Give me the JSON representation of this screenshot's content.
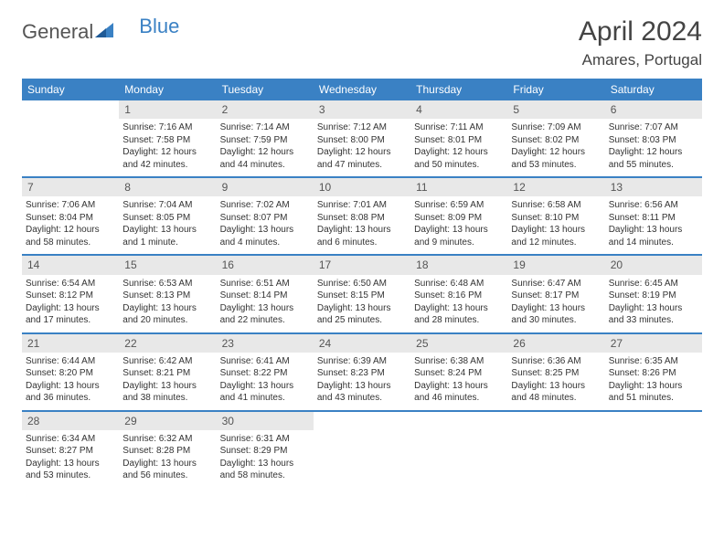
{
  "logo": {
    "part1": "General",
    "part2": "Blue"
  },
  "title": "April 2024",
  "location": "Amares, Portugal",
  "colors": {
    "brand": "#3a81c4",
    "day_bar_bg": "#e8e8e8",
    "text": "#333333",
    "header_text": "#ffffff"
  },
  "dayHeaders": [
    "Sunday",
    "Monday",
    "Tuesday",
    "Wednesday",
    "Thursday",
    "Friday",
    "Saturday"
  ],
  "weeks": [
    [
      {
        "num": "",
        "sunrise": "",
        "sunset": "",
        "daylight": ""
      },
      {
        "num": "1",
        "sunrise": "Sunrise: 7:16 AM",
        "sunset": "Sunset: 7:58 PM",
        "daylight": "Daylight: 12 hours and 42 minutes."
      },
      {
        "num": "2",
        "sunrise": "Sunrise: 7:14 AM",
        "sunset": "Sunset: 7:59 PM",
        "daylight": "Daylight: 12 hours and 44 minutes."
      },
      {
        "num": "3",
        "sunrise": "Sunrise: 7:12 AM",
        "sunset": "Sunset: 8:00 PM",
        "daylight": "Daylight: 12 hours and 47 minutes."
      },
      {
        "num": "4",
        "sunrise": "Sunrise: 7:11 AM",
        "sunset": "Sunset: 8:01 PM",
        "daylight": "Daylight: 12 hours and 50 minutes."
      },
      {
        "num": "5",
        "sunrise": "Sunrise: 7:09 AM",
        "sunset": "Sunset: 8:02 PM",
        "daylight": "Daylight: 12 hours and 53 minutes."
      },
      {
        "num": "6",
        "sunrise": "Sunrise: 7:07 AM",
        "sunset": "Sunset: 8:03 PM",
        "daylight": "Daylight: 12 hours and 55 minutes."
      }
    ],
    [
      {
        "num": "7",
        "sunrise": "Sunrise: 7:06 AM",
        "sunset": "Sunset: 8:04 PM",
        "daylight": "Daylight: 12 hours and 58 minutes."
      },
      {
        "num": "8",
        "sunrise": "Sunrise: 7:04 AM",
        "sunset": "Sunset: 8:05 PM",
        "daylight": "Daylight: 13 hours and 1 minute."
      },
      {
        "num": "9",
        "sunrise": "Sunrise: 7:02 AM",
        "sunset": "Sunset: 8:07 PM",
        "daylight": "Daylight: 13 hours and 4 minutes."
      },
      {
        "num": "10",
        "sunrise": "Sunrise: 7:01 AM",
        "sunset": "Sunset: 8:08 PM",
        "daylight": "Daylight: 13 hours and 6 minutes."
      },
      {
        "num": "11",
        "sunrise": "Sunrise: 6:59 AM",
        "sunset": "Sunset: 8:09 PM",
        "daylight": "Daylight: 13 hours and 9 minutes."
      },
      {
        "num": "12",
        "sunrise": "Sunrise: 6:58 AM",
        "sunset": "Sunset: 8:10 PM",
        "daylight": "Daylight: 13 hours and 12 minutes."
      },
      {
        "num": "13",
        "sunrise": "Sunrise: 6:56 AM",
        "sunset": "Sunset: 8:11 PM",
        "daylight": "Daylight: 13 hours and 14 minutes."
      }
    ],
    [
      {
        "num": "14",
        "sunrise": "Sunrise: 6:54 AM",
        "sunset": "Sunset: 8:12 PM",
        "daylight": "Daylight: 13 hours and 17 minutes."
      },
      {
        "num": "15",
        "sunrise": "Sunrise: 6:53 AM",
        "sunset": "Sunset: 8:13 PM",
        "daylight": "Daylight: 13 hours and 20 minutes."
      },
      {
        "num": "16",
        "sunrise": "Sunrise: 6:51 AM",
        "sunset": "Sunset: 8:14 PM",
        "daylight": "Daylight: 13 hours and 22 minutes."
      },
      {
        "num": "17",
        "sunrise": "Sunrise: 6:50 AM",
        "sunset": "Sunset: 8:15 PM",
        "daylight": "Daylight: 13 hours and 25 minutes."
      },
      {
        "num": "18",
        "sunrise": "Sunrise: 6:48 AM",
        "sunset": "Sunset: 8:16 PM",
        "daylight": "Daylight: 13 hours and 28 minutes."
      },
      {
        "num": "19",
        "sunrise": "Sunrise: 6:47 AM",
        "sunset": "Sunset: 8:17 PM",
        "daylight": "Daylight: 13 hours and 30 minutes."
      },
      {
        "num": "20",
        "sunrise": "Sunrise: 6:45 AM",
        "sunset": "Sunset: 8:19 PM",
        "daylight": "Daylight: 13 hours and 33 minutes."
      }
    ],
    [
      {
        "num": "21",
        "sunrise": "Sunrise: 6:44 AM",
        "sunset": "Sunset: 8:20 PM",
        "daylight": "Daylight: 13 hours and 36 minutes."
      },
      {
        "num": "22",
        "sunrise": "Sunrise: 6:42 AM",
        "sunset": "Sunset: 8:21 PM",
        "daylight": "Daylight: 13 hours and 38 minutes."
      },
      {
        "num": "23",
        "sunrise": "Sunrise: 6:41 AM",
        "sunset": "Sunset: 8:22 PM",
        "daylight": "Daylight: 13 hours and 41 minutes."
      },
      {
        "num": "24",
        "sunrise": "Sunrise: 6:39 AM",
        "sunset": "Sunset: 8:23 PM",
        "daylight": "Daylight: 13 hours and 43 minutes."
      },
      {
        "num": "25",
        "sunrise": "Sunrise: 6:38 AM",
        "sunset": "Sunset: 8:24 PM",
        "daylight": "Daylight: 13 hours and 46 minutes."
      },
      {
        "num": "26",
        "sunrise": "Sunrise: 6:36 AM",
        "sunset": "Sunset: 8:25 PM",
        "daylight": "Daylight: 13 hours and 48 minutes."
      },
      {
        "num": "27",
        "sunrise": "Sunrise: 6:35 AM",
        "sunset": "Sunset: 8:26 PM",
        "daylight": "Daylight: 13 hours and 51 minutes."
      }
    ],
    [
      {
        "num": "28",
        "sunrise": "Sunrise: 6:34 AM",
        "sunset": "Sunset: 8:27 PM",
        "daylight": "Daylight: 13 hours and 53 minutes."
      },
      {
        "num": "29",
        "sunrise": "Sunrise: 6:32 AM",
        "sunset": "Sunset: 8:28 PM",
        "daylight": "Daylight: 13 hours and 56 minutes."
      },
      {
        "num": "30",
        "sunrise": "Sunrise: 6:31 AM",
        "sunset": "Sunset: 8:29 PM",
        "daylight": "Daylight: 13 hours and 58 minutes."
      },
      {
        "num": "",
        "sunrise": "",
        "sunset": "",
        "daylight": ""
      },
      {
        "num": "",
        "sunrise": "",
        "sunset": "",
        "daylight": ""
      },
      {
        "num": "",
        "sunrise": "",
        "sunset": "",
        "daylight": ""
      },
      {
        "num": "",
        "sunrise": "",
        "sunset": "",
        "daylight": ""
      }
    ]
  ]
}
